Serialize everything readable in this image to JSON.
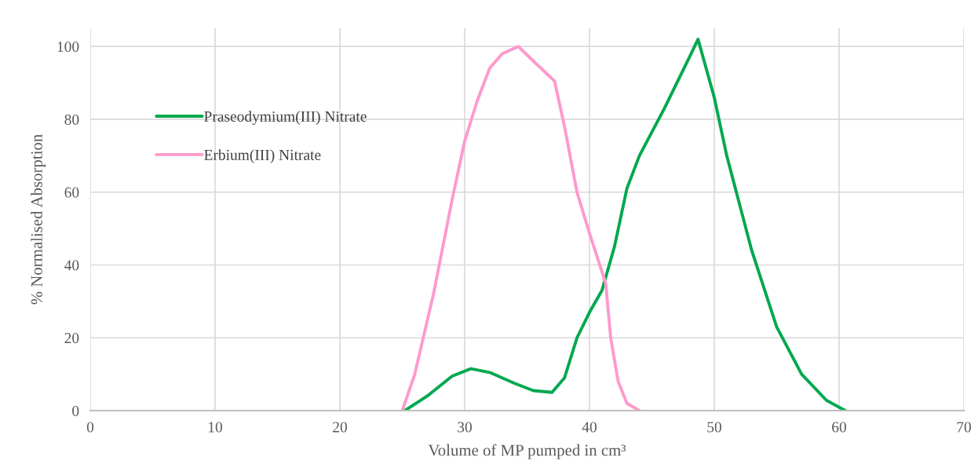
{
  "chart_data": {
    "type": "line",
    "xlabel": "Volume of MP pumped in cm³",
    "ylabel": "% Normalised Absorption",
    "xlim": [
      0,
      70
    ],
    "xticks": [
      0,
      10,
      20,
      30,
      40,
      50,
      60,
      70
    ],
    "ylim": [
      0,
      105
    ],
    "yticks": [
      0,
      20,
      40,
      60,
      80,
      100
    ],
    "grid": true,
    "legend": "upper left",
    "marker": "none",
    "line_style": "solid",
    "series": [
      {
        "name": "Praseodymium(III) Nitrate",
        "color": "#00a84f",
        "x": [
          25.2,
          27,
          29,
          30.5,
          32,
          34,
          35.5,
          37,
          38,
          39,
          40,
          41,
          42,
          43,
          44,
          46,
          48,
          48.7,
          50,
          51,
          52,
          53,
          55,
          57,
          59,
          60.5
        ],
        "values": [
          0,
          4,
          9.5,
          11.5,
          10.5,
          7.5,
          5.5,
          5,
          9,
          20,
          27,
          33,
          45,
          61,
          70,
          83,
          97,
          102,
          86,
          70,
          57,
          44,
          23,
          10,
          2.8,
          0
        ]
      },
      {
        "name": "Erbium(III) Nitrate",
        "color": "#ff99cc",
        "x": [
          25,
          26,
          27.5,
          29,
          30,
          31,
          32,
          33,
          34.3,
          35.5,
          37.2,
          38,
          39,
          40,
          41.3,
          41.7,
          42.3,
          43,
          44
        ],
        "values": [
          0,
          10,
          32,
          58,
          74,
          85,
          94,
          98,
          100,
          96,
          90.5,
          78,
          60,
          48.7,
          35,
          20,
          8,
          2,
          0
        ]
      }
    ]
  }
}
